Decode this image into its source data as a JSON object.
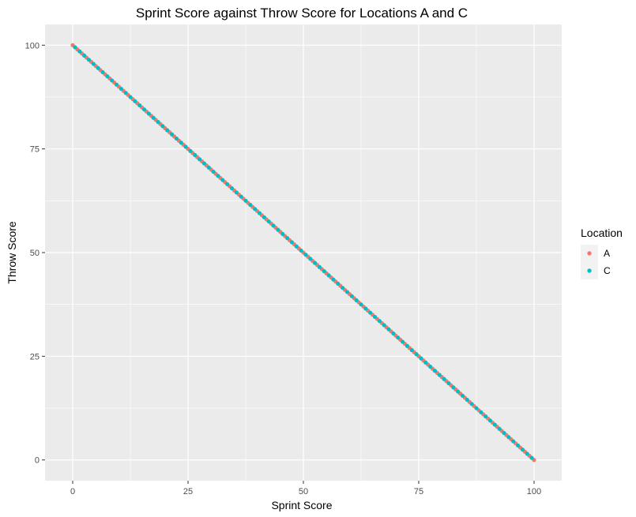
{
  "chart_data": {
    "type": "scatter",
    "title": "Sprint Score against Throw Score for Locations A and C",
    "xlabel": "Sprint Score",
    "ylabel": "Throw Score",
    "xlim": [
      -6,
      106
    ],
    "ylim": [
      -5,
      105
    ],
    "x_ticks": [
      0,
      25,
      50,
      75,
      100
    ],
    "y_ticks": [
      0,
      25,
      50,
      75,
      100
    ],
    "grid": true,
    "legend": {
      "title": "Location",
      "position": "right"
    },
    "series": [
      {
        "name": "A",
        "color": "#F8766D",
        "points": [
          [
            0,
            100
          ],
          [
            1,
            99
          ],
          [
            2,
            98
          ],
          [
            3,
            97
          ],
          [
            4,
            96
          ],
          [
            5,
            95
          ],
          [
            6,
            94
          ],
          [
            7,
            93
          ],
          [
            8,
            92
          ],
          [
            9,
            91
          ],
          [
            10,
            90
          ],
          [
            11,
            89
          ],
          [
            12,
            88
          ],
          [
            13,
            87
          ],
          [
            14,
            86
          ],
          [
            15,
            85
          ],
          [
            16,
            84
          ],
          [
            17,
            83
          ],
          [
            18,
            82
          ],
          [
            19,
            81
          ],
          [
            20,
            80
          ],
          [
            21,
            79
          ],
          [
            22,
            78
          ],
          [
            23,
            77
          ],
          [
            24,
            76
          ],
          [
            25,
            75
          ],
          [
            26,
            74
          ],
          [
            27,
            73
          ],
          [
            28,
            72
          ],
          [
            29,
            71
          ],
          [
            30,
            70
          ],
          [
            31,
            69
          ],
          [
            32,
            68
          ],
          [
            33,
            67
          ],
          [
            34,
            66
          ],
          [
            35,
            65
          ],
          [
            36,
            64
          ],
          [
            37,
            63
          ],
          [
            38,
            62
          ],
          [
            39,
            61
          ],
          [
            40,
            60
          ],
          [
            41,
            59
          ],
          [
            42,
            58
          ],
          [
            43,
            57
          ],
          [
            44,
            56
          ],
          [
            45,
            55
          ],
          [
            46,
            54
          ],
          [
            47,
            53
          ],
          [
            48,
            52
          ],
          [
            49,
            51
          ],
          [
            50,
            50
          ],
          [
            51,
            49
          ],
          [
            52,
            48
          ],
          [
            53,
            47
          ],
          [
            54,
            46
          ],
          [
            55,
            45
          ],
          [
            56,
            44
          ],
          [
            57,
            43
          ],
          [
            58,
            42
          ],
          [
            59,
            41
          ],
          [
            60,
            40
          ],
          [
            61,
            39
          ],
          [
            62,
            38
          ],
          [
            63,
            37
          ],
          [
            64,
            36
          ],
          [
            65,
            35
          ],
          [
            66,
            34
          ],
          [
            67,
            33
          ],
          [
            68,
            32
          ],
          [
            69,
            31
          ],
          [
            70,
            30
          ],
          [
            71,
            29
          ],
          [
            72,
            28
          ],
          [
            73,
            27
          ],
          [
            74,
            26
          ],
          [
            75,
            25
          ],
          [
            76,
            24
          ],
          [
            77,
            23
          ],
          [
            78,
            22
          ],
          [
            79,
            21
          ],
          [
            80,
            20
          ],
          [
            81,
            19
          ],
          [
            82,
            18
          ],
          [
            83,
            17
          ],
          [
            84,
            16
          ],
          [
            85,
            15
          ],
          [
            86,
            14
          ],
          [
            87,
            13
          ],
          [
            88,
            12
          ],
          [
            89,
            11
          ],
          [
            90,
            10
          ],
          [
            91,
            9
          ],
          [
            92,
            8
          ],
          [
            93,
            7
          ],
          [
            94,
            6
          ],
          [
            95,
            5
          ],
          [
            96,
            4
          ],
          [
            97,
            3
          ],
          [
            98,
            2
          ],
          [
            99,
            1
          ],
          [
            100,
            0
          ]
        ]
      },
      {
        "name": "C",
        "color": "#00BFC4",
        "points": [
          [
            0.5,
            99.5
          ],
          [
            1.5,
            98.5
          ],
          [
            2.5,
            97.5
          ],
          [
            3.5,
            96.5
          ],
          [
            4.5,
            95.5
          ],
          [
            5.5,
            94.5
          ],
          [
            6.5,
            93.5
          ],
          [
            7.5,
            92.5
          ],
          [
            8.5,
            91.5
          ],
          [
            9.5,
            90.5
          ],
          [
            10.5,
            89.5
          ],
          [
            11.5,
            88.5
          ],
          [
            12.5,
            87.5
          ],
          [
            13.5,
            86.5
          ],
          [
            14.5,
            85.5
          ],
          [
            15.5,
            84.5
          ],
          [
            16.5,
            83.5
          ],
          [
            17.5,
            82.5
          ],
          [
            18.5,
            81.5
          ],
          [
            19.5,
            80.5
          ],
          [
            20.5,
            79.5
          ],
          [
            21.5,
            78.5
          ],
          [
            22.5,
            77.5
          ],
          [
            23.5,
            76.5
          ],
          [
            24.5,
            75.5
          ],
          [
            25.5,
            74.5
          ],
          [
            26.5,
            73.5
          ],
          [
            27.5,
            72.5
          ],
          [
            28.5,
            71.5
          ],
          [
            29.5,
            70.5
          ],
          [
            30.5,
            69.5
          ],
          [
            31.5,
            68.5
          ],
          [
            32.5,
            67.5
          ],
          [
            33.5,
            66.5
          ],
          [
            34.5,
            65.5
          ],
          [
            35.5,
            64.5
          ],
          [
            36.5,
            63.5
          ],
          [
            37.5,
            62.5
          ],
          [
            38.5,
            61.5
          ],
          [
            39.5,
            60.5
          ],
          [
            40.5,
            59.5
          ],
          [
            41.5,
            58.5
          ],
          [
            42.5,
            57.5
          ],
          [
            43.5,
            56.5
          ],
          [
            44.5,
            55.5
          ],
          [
            45.5,
            54.5
          ],
          [
            46.5,
            53.5
          ],
          [
            47.5,
            52.5
          ],
          [
            48.5,
            51.5
          ],
          [
            49.5,
            50.5
          ],
          [
            50.5,
            49.5
          ],
          [
            51.5,
            48.5
          ],
          [
            52.5,
            47.5
          ],
          [
            53.5,
            46.5
          ],
          [
            54.5,
            45.5
          ],
          [
            55.5,
            44.5
          ],
          [
            56.5,
            43.5
          ],
          [
            57.5,
            42.5
          ],
          [
            58.5,
            41.5
          ],
          [
            59.5,
            40.5
          ],
          [
            60.5,
            39.5
          ],
          [
            61.5,
            38.5
          ],
          [
            62.5,
            37.5
          ],
          [
            63.5,
            36.5
          ],
          [
            64.5,
            35.5
          ],
          [
            65.5,
            34.5
          ],
          [
            66.5,
            33.5
          ],
          [
            67.5,
            32.5
          ],
          [
            68.5,
            31.5
          ],
          [
            69.5,
            30.5
          ],
          [
            70.5,
            29.5
          ],
          [
            71.5,
            28.5
          ],
          [
            72.5,
            27.5
          ],
          [
            73.5,
            26.5
          ],
          [
            74.5,
            25.5
          ],
          [
            75.5,
            24.5
          ],
          [
            76.5,
            23.5
          ],
          [
            77.5,
            22.5
          ],
          [
            78.5,
            21.5
          ],
          [
            79.5,
            20.5
          ],
          [
            80.5,
            19.5
          ],
          [
            81.5,
            18.5
          ],
          [
            82.5,
            17.5
          ],
          [
            83.5,
            16.5
          ],
          [
            84.5,
            15.5
          ],
          [
            85.5,
            14.5
          ],
          [
            86.5,
            13.5
          ],
          [
            87.5,
            12.5
          ],
          [
            88.5,
            11.5
          ],
          [
            89.5,
            10.5
          ],
          [
            90.5,
            9.5
          ],
          [
            91.5,
            8.5
          ],
          [
            92.5,
            7.5
          ],
          [
            93.5,
            6.5
          ],
          [
            94.5,
            5.5
          ],
          [
            95.5,
            4.5
          ],
          [
            96.5,
            3.5
          ],
          [
            97.5,
            2.5
          ],
          [
            98.5,
            1.5
          ],
          [
            99.5,
            0.5
          ]
        ]
      }
    ]
  }
}
